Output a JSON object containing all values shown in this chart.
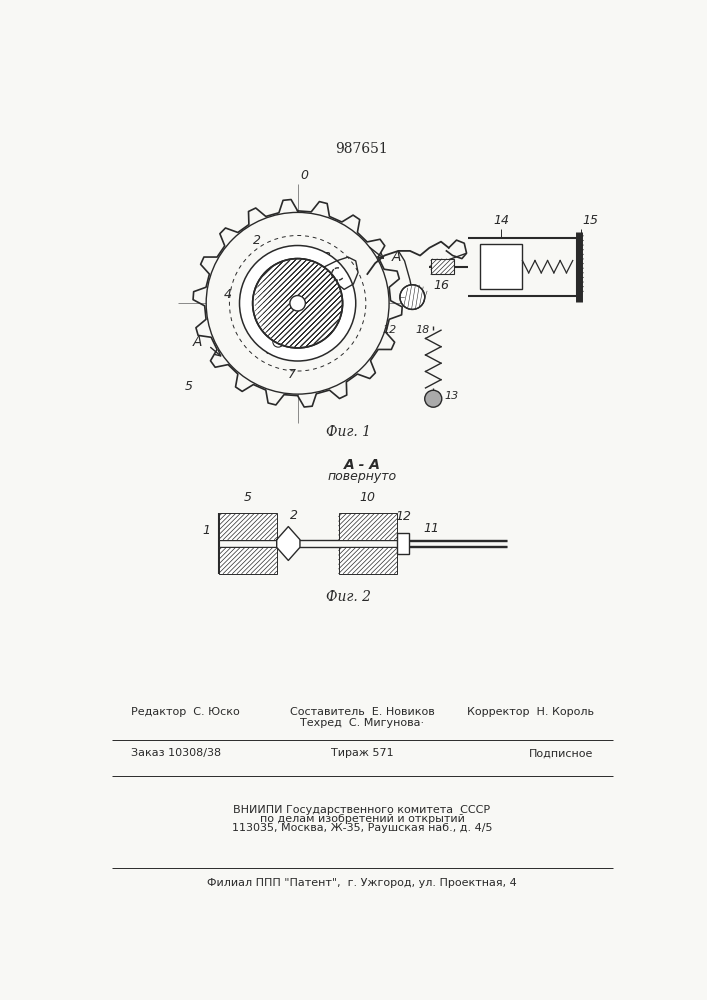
{
  "patent_number": "987651",
  "bg_color": "#f8f8f5",
  "line_color": "#2a2a2a",
  "fig1_caption": "Фиг. 1",
  "fig2_caption": "Фиг. 2",
  "fig2_title": "A - A",
  "fig2_subtitle": "повернуто",
  "footer_editor": "Редактор  С. Юско",
  "footer_composer": "Составитель  Е. Новиков",
  "footer_techred": "Техред  С. Мигунова·",
  "footer_corrector": "Корректор  Н. Король",
  "footer_order": "Заказ 10308/38",
  "footer_tirazh": "Тираж 571",
  "footer_podpisnoe": "Подписное",
  "footer_vniip1": "ВНИИПИ Государственного комитета  СССР",
  "footer_vniip2": "по делам изобретений и открытий",
  "footer_vniip3": "113035, Москва, Ж-35, Раушская наб., д. 4/5",
  "footer_filial": "Филиал ППП \"Патент\",  г. Ужгород, ул. Проектная, 4"
}
